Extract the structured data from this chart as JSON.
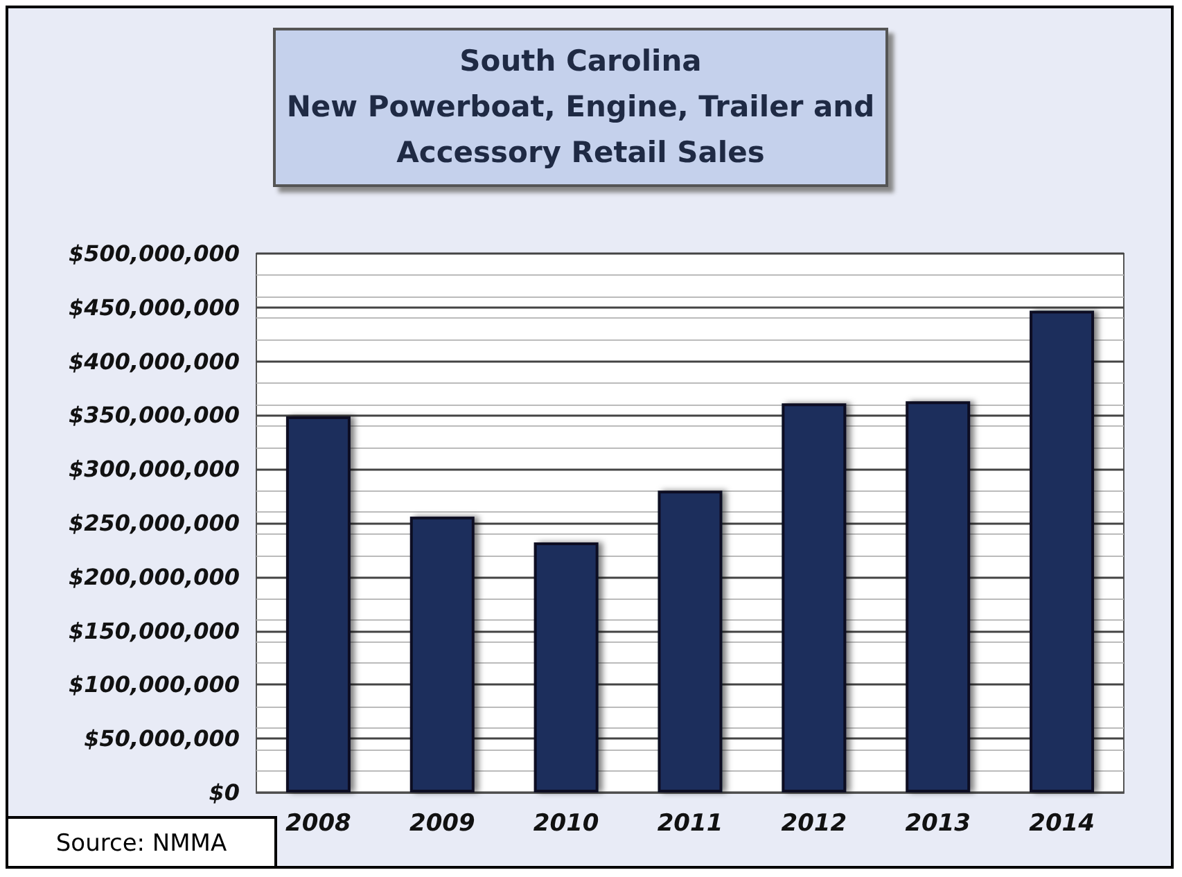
{
  "chart_data": {
    "type": "bar",
    "title": "South Carolina\nNew Powerboat, Engine, Trailer and\nAccessory Retail Sales",
    "categories": [
      "2008",
      "2009",
      "2010",
      "2011",
      "2012",
      "2013",
      "2014"
    ],
    "values": [
      349000000,
      256000000,
      232000000,
      280000000,
      361000000,
      363000000,
      447000000
    ],
    "color": "#1f2d5c",
    "ylim": [
      0,
      500000000
    ],
    "yticks": [
      {
        "value": 0,
        "label": "$0"
      },
      {
        "value": 50000000,
        "label": "$50,000,000"
      },
      {
        "value": 100000000,
        "label": "$100,000,000"
      },
      {
        "value": 150000000,
        "label": "$150,000,000"
      },
      {
        "value": 200000000,
        "label": "$200,000,000"
      },
      {
        "value": 250000000,
        "label": "$250,000,000"
      },
      {
        "value": 300000000,
        "label": "$300,000,000"
      },
      {
        "value": 350000000,
        "label": "$350,000,000"
      },
      {
        "value": 400000000,
        "label": "$400,000,000"
      },
      {
        "value": 450000000,
        "label": "$450,000,000"
      },
      {
        "value": 500000000,
        "label": "$500,000,000"
      }
    ],
    "grid": "y",
    "annotations": [
      "Source: NMMA"
    ]
  }
}
